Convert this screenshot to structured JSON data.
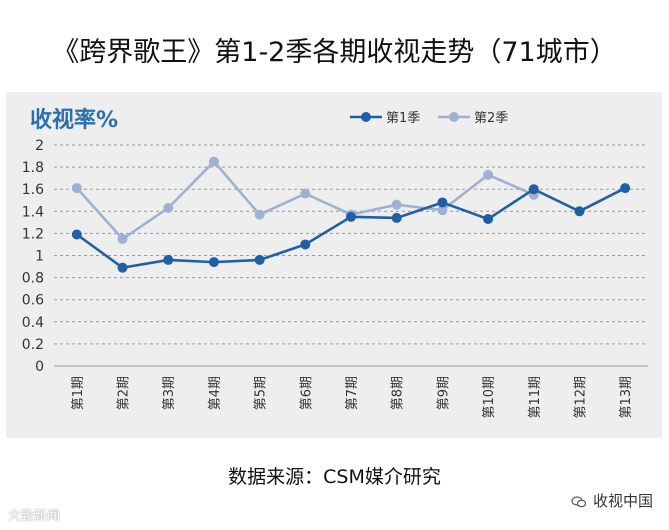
{
  "title": "《跨界歌王》第1-2季各期收视走势（71城市）",
  "source": "数据来源：CSM媒介研究",
  "watermark_left": "大致新闻",
  "watermark_right": "收视中国",
  "colors": {
    "series1": "#1f5fa6",
    "series2": "#9fb0d2",
    "grid": "#9a9a9a",
    "panel": "#eeeeee",
    "ylabel": "#2a6fb0"
  },
  "chart_data": {
    "type": "line",
    "title": "",
    "ylabel": "收视率%",
    "xlabel": "",
    "ylim": [
      0,
      2
    ],
    "yticks": [
      "0",
      "0.2",
      "0.4",
      "0.6",
      "0.8",
      "1",
      "1.2",
      "1.4",
      "1.6",
      "1.8",
      "2"
    ],
    "categories": [
      "第1期",
      "第2期",
      "第3期",
      "第4期",
      "第5期",
      "第6期",
      "第7期",
      "第8期",
      "第9期",
      "第10期",
      "第11期",
      "第12期",
      "第13期"
    ],
    "legend_position": "top-right",
    "grid": true,
    "series": [
      {
        "name": "第1季",
        "values": [
          1.19,
          0.89,
          0.96,
          0.94,
          0.96,
          1.1,
          1.35,
          1.34,
          1.48,
          1.33,
          1.6,
          1.4,
          1.61
        ]
      },
      {
        "name": "第2季",
        "values": [
          1.61,
          1.15,
          1.43,
          1.85,
          1.37,
          1.56,
          1.37,
          1.46,
          1.41,
          1.73,
          1.55,
          null,
          null
        ]
      }
    ]
  }
}
